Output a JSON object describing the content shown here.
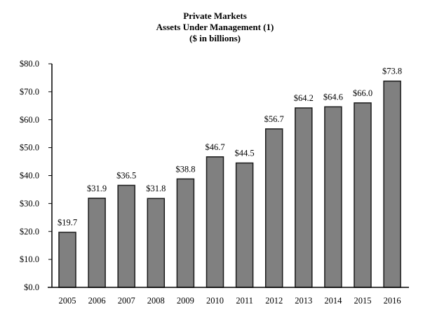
{
  "chart_data": {
    "type": "bar",
    "title": "Private Markets",
    "subtitle": "Assets Under Management (1)",
    "units": "($ in billions)",
    "xlabel": "",
    "ylabel": "",
    "ylim": [
      0,
      80
    ],
    "yticks": [
      "$0.0",
      "$10.0",
      "$20.0",
      "$30.0",
      "$40.0",
      "$50.0",
      "$60.0",
      "$70.0",
      "$80.0"
    ],
    "grid": false,
    "legend": null,
    "bar_color": "#808080",
    "bar_edge_color": "#1a1a1a",
    "categories": [
      "2005",
      "2006",
      "2007",
      "2008",
      "2009",
      "2010",
      "2011",
      "2012",
      "2013",
      "2014",
      "2015",
      "2016"
    ],
    "values": [
      19.7,
      31.9,
      36.5,
      31.8,
      38.8,
      46.7,
      44.5,
      56.7,
      64.2,
      64.6,
      66.0,
      73.8
    ],
    "data_labels": [
      "$19.7",
      "$31.9",
      "$36.5",
      "$31.8",
      "$38.8",
      "$46.7",
      "$44.5",
      "$56.7",
      "$64.2",
      "$64.6",
      "$66.0",
      "$73.8"
    ]
  }
}
